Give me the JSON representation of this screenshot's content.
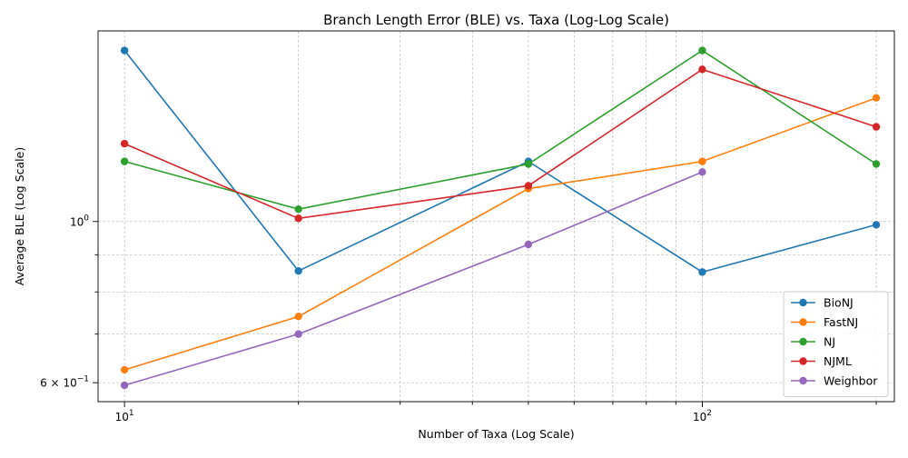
{
  "chart_data": {
    "type": "line",
    "title": "Branch Length Error (BLE) vs. Taxa (Log-Log Scale)",
    "xlabel": "Number of Taxa (Log Scale)",
    "ylabel": "Average BLE (Log Scale)",
    "xscale": "log",
    "yscale": "log",
    "xlim": [
      9,
      215
    ],
    "ylim": [
      0.565,
      1.83
    ],
    "x_major_ticks": [
      {
        "value": 10,
        "base": "10",
        "exp": "1"
      },
      {
        "value": 100,
        "base": "10",
        "exp": "2"
      }
    ],
    "x_minor_ticks": [
      20,
      30,
      40,
      50,
      60,
      70,
      80,
      90,
      200
    ],
    "y_major_ticks": [
      {
        "value": 1.0,
        "base": "10",
        "exp": "0",
        "mantissa": ""
      },
      {
        "value": 0.6,
        "base": "10",
        "exp": "−1",
        "mantissa": "6 × "
      }
    ],
    "y_minor_ticks": [
      0.7,
      0.8,
      0.9
    ],
    "grid": true,
    "legend_position": "lower-right",
    "series": [
      {
        "name": "BioNJ",
        "color": "#1f77b4",
        "x": [
          10,
          20,
          50,
          100,
          200
        ],
        "y": [
          1.72,
          0.855,
          1.21,
          0.852,
          0.99
        ]
      },
      {
        "name": "FastNJ",
        "color": "#ff7f0e",
        "x": [
          10,
          20,
          50,
          100,
          200
        ],
        "y": [
          0.625,
          0.74,
          1.11,
          1.21,
          1.48
        ]
      },
      {
        "name": "NJ",
        "color": "#2ca02c",
        "x": [
          10,
          20,
          50,
          100,
          200
        ],
        "y": [
          1.21,
          1.04,
          1.2,
          1.72,
          1.2
        ]
      },
      {
        "name": "NJML",
        "color": "#d62728",
        "x": [
          10,
          20,
          50,
          100,
          200
        ],
        "y": [
          1.28,
          1.01,
          1.12,
          1.62,
          1.35
        ]
      },
      {
        "name": "Weighbor",
        "color": "#9467bd",
        "x": [
          10,
          20,
          50,
          100
        ],
        "y": [
          0.595,
          0.7,
          0.93,
          1.17
        ]
      }
    ]
  }
}
